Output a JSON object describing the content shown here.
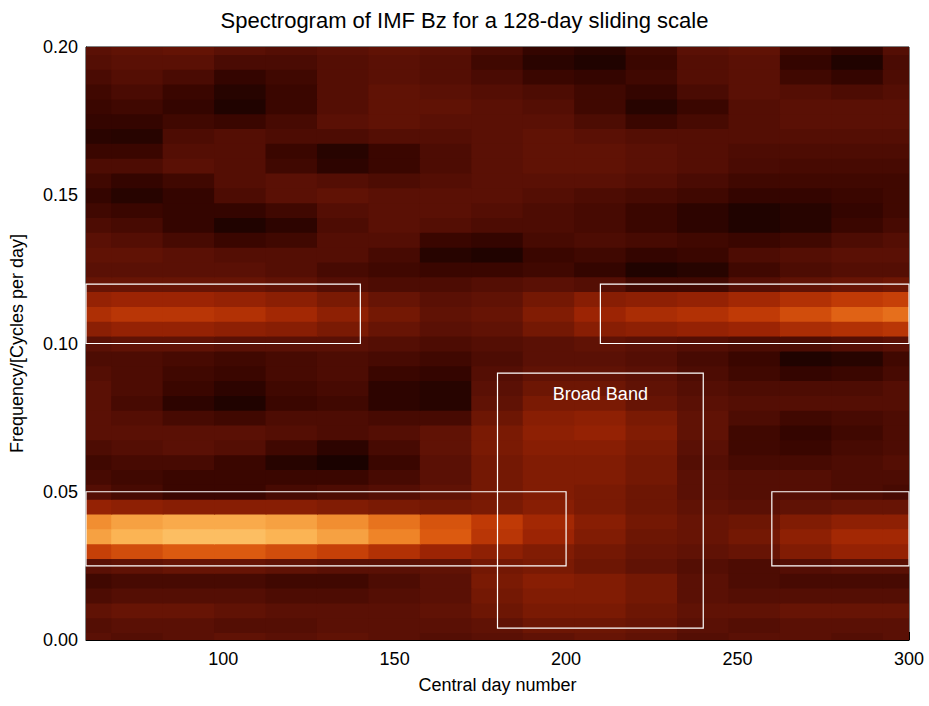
{
  "chart_data": {
    "type": "heatmap",
    "title": "Spectrogram of IMF Bz for a 128-day sliding scale",
    "x_label": "Central day number",
    "y_label": "Frequency/[Cycles per day]",
    "xlim": [
      60,
      300
    ],
    "ylim": [
      0,
      0.2
    ],
    "xticks": [
      100,
      150,
      200,
      250,
      300
    ],
    "yticks": [
      {
        "value": 0,
        "label": "0.00"
      },
      {
        "value": 0.05,
        "label": "0.05"
      },
      {
        "value": 0.1,
        "label": "0.10"
      },
      {
        "value": 0.15,
        "label": "0.15"
      },
      {
        "value": 0.2,
        "label": "0.20"
      }
    ],
    "grid": false,
    "zlim": [
      0,
      1
    ],
    "cells": {
      "x": [
        60,
        75,
        90,
        105,
        120,
        135,
        150,
        165,
        180,
        195,
        210,
        225,
        240,
        255,
        270,
        285,
        300
      ],
      "y": [
        0,
        0.005,
        0.01,
        0.015,
        0.02,
        0.025,
        0.03,
        0.035,
        0.04,
        0.045,
        0.05,
        0.055,
        0.06,
        0.065,
        0.07,
        0.075,
        0.08,
        0.085,
        0.09,
        0.095,
        0.1,
        0.105,
        0.11,
        0.115,
        0.12,
        0.125,
        0.13,
        0.135,
        0.14,
        0.145,
        0.15,
        0.155,
        0.16,
        0.165,
        0.17,
        0.175,
        0.18,
        0.185,
        0.19,
        0.195,
        0.2
      ],
      "z": [
        [
          0.3,
          0.28,
          0.3,
          0.32,
          0.3,
          0.32,
          0.3,
          0.28,
          0.3,
          0.32,
          0.34,
          0.32,
          0.28,
          0.3,
          0.3,
          0.28,
          0.3
        ],
        [
          0.28,
          0.3,
          0.3,
          0.28,
          0.28,
          0.3,
          0.3,
          0.3,
          0.32,
          0.36,
          0.36,
          0.34,
          0.3,
          0.28,
          0.3,
          0.3,
          0.3
        ],
        [
          0.32,
          0.34,
          0.34,
          0.32,
          0.3,
          0.3,
          0.3,
          0.32,
          0.36,
          0.4,
          0.4,
          0.36,
          0.32,
          0.32,
          0.34,
          0.34,
          0.34
        ],
        [
          0.26,
          0.28,
          0.28,
          0.28,
          0.26,
          0.26,
          0.28,
          0.3,
          0.38,
          0.42,
          0.42,
          0.38,
          0.3,
          0.28,
          0.28,
          0.28,
          0.28
        ],
        [
          0.22,
          0.24,
          0.24,
          0.24,
          0.22,
          0.22,
          0.26,
          0.3,
          0.4,
          0.44,
          0.42,
          0.38,
          0.3,
          0.26,
          0.24,
          0.24,
          0.24
        ],
        [
          0.3,
          0.32,
          0.34,
          0.34,
          0.32,
          0.3,
          0.3,
          0.32,
          0.38,
          0.4,
          0.36,
          0.32,
          0.28,
          0.26,
          0.28,
          0.3,
          0.3
        ],
        [
          0.62,
          0.66,
          0.7,
          0.7,
          0.66,
          0.62,
          0.56,
          0.5,
          0.46,
          0.42,
          0.38,
          0.34,
          0.32,
          0.34,
          0.42,
          0.48,
          0.48
        ],
        [
          0.86,
          0.9,
          0.92,
          0.92,
          0.9,
          0.86,
          0.8,
          0.7,
          0.58,
          0.5,
          0.42,
          0.36,
          0.34,
          0.38,
          0.46,
          0.52,
          0.52
        ],
        [
          0.82,
          0.86,
          0.88,
          0.88,
          0.86,
          0.82,
          0.76,
          0.68,
          0.6,
          0.52,
          0.44,
          0.38,
          0.34,
          0.36,
          0.42,
          0.46,
          0.46
        ],
        [
          0.48,
          0.46,
          0.44,
          0.44,
          0.44,
          0.42,
          0.4,
          0.38,
          0.4,
          0.44,
          0.4,
          0.36,
          0.32,
          0.3,
          0.32,
          0.34,
          0.34
        ],
        [
          0.28,
          0.24,
          0.2,
          0.2,
          0.24,
          0.26,
          0.28,
          0.32,
          0.38,
          0.42,
          0.4,
          0.36,
          0.3,
          0.28,
          0.28,
          0.26,
          0.24
        ],
        [
          0.24,
          0.22,
          0.2,
          0.2,
          0.2,
          0.2,
          0.24,
          0.3,
          0.38,
          0.42,
          0.42,
          0.38,
          0.3,
          0.28,
          0.28,
          0.26,
          0.26
        ],
        [
          0.22,
          0.24,
          0.24,
          0.2,
          0.14,
          0.1,
          0.2,
          0.3,
          0.38,
          0.42,
          0.42,
          0.38,
          0.28,
          0.24,
          0.24,
          0.26,
          0.28
        ],
        [
          0.26,
          0.28,
          0.3,
          0.28,
          0.22,
          0.16,
          0.24,
          0.32,
          0.4,
          0.44,
          0.44,
          0.4,
          0.3,
          0.22,
          0.2,
          0.24,
          0.26
        ],
        [
          0.3,
          0.3,
          0.3,
          0.3,
          0.28,
          0.26,
          0.28,
          0.32,
          0.4,
          0.46,
          0.48,
          0.42,
          0.32,
          0.22,
          0.18,
          0.22,
          0.26
        ],
        [
          0.3,
          0.28,
          0.24,
          0.22,
          0.26,
          0.26,
          0.24,
          0.24,
          0.36,
          0.44,
          0.46,
          0.4,
          0.32,
          0.26,
          0.22,
          0.24,
          0.26
        ],
        [
          0.3,
          0.24,
          0.16,
          0.12,
          0.2,
          0.22,
          0.16,
          0.14,
          0.32,
          0.4,
          0.4,
          0.34,
          0.3,
          0.28,
          0.28,
          0.28,
          0.28
        ],
        [
          0.3,
          0.26,
          0.2,
          0.16,
          0.22,
          0.24,
          0.16,
          0.14,
          0.3,
          0.36,
          0.36,
          0.32,
          0.28,
          0.26,
          0.26,
          0.26,
          0.28
        ],
        [
          0.28,
          0.26,
          0.22,
          0.2,
          0.24,
          0.26,
          0.2,
          0.18,
          0.28,
          0.32,
          0.32,
          0.3,
          0.26,
          0.22,
          0.18,
          0.2,
          0.24
        ],
        [
          0.26,
          0.26,
          0.24,
          0.22,
          0.24,
          0.26,
          0.24,
          0.22,
          0.26,
          0.3,
          0.3,
          0.28,
          0.24,
          0.2,
          0.12,
          0.14,
          0.22
        ],
        [
          0.3,
          0.32,
          0.32,
          0.3,
          0.3,
          0.3,
          0.28,
          0.26,
          0.28,
          0.3,
          0.32,
          0.3,
          0.28,
          0.26,
          0.26,
          0.28,
          0.3
        ],
        [
          0.45,
          0.48,
          0.48,
          0.46,
          0.44,
          0.4,
          0.34,
          0.3,
          0.32,
          0.38,
          0.44,
          0.46,
          0.48,
          0.5,
          0.54,
          0.56,
          0.58
        ],
        [
          0.55,
          0.58,
          0.58,
          0.56,
          0.52,
          0.46,
          0.38,
          0.32,
          0.34,
          0.42,
          0.5,
          0.54,
          0.56,
          0.6,
          0.66,
          0.72,
          0.75
        ],
        [
          0.48,
          0.5,
          0.5,
          0.48,
          0.45,
          0.4,
          0.34,
          0.3,
          0.32,
          0.38,
          0.44,
          0.46,
          0.48,
          0.52,
          0.56,
          0.6,
          0.62
        ],
        [
          0.34,
          0.34,
          0.34,
          0.34,
          0.32,
          0.28,
          0.26,
          0.26,
          0.28,
          0.3,
          0.28,
          0.22,
          0.22,
          0.28,
          0.32,
          0.34,
          0.36
        ],
        [
          0.3,
          0.3,
          0.3,
          0.3,
          0.28,
          0.24,
          0.22,
          0.2,
          0.2,
          0.22,
          0.18,
          0.12,
          0.14,
          0.22,
          0.26,
          0.28,
          0.28
        ],
        [
          0.32,
          0.32,
          0.3,
          0.28,
          0.28,
          0.28,
          0.24,
          0.14,
          0.12,
          0.2,
          0.22,
          0.18,
          0.2,
          0.26,
          0.28,
          0.3,
          0.3
        ],
        [
          0.3,
          0.28,
          0.24,
          0.2,
          0.22,
          0.28,
          0.28,
          0.2,
          0.18,
          0.24,
          0.26,
          0.24,
          0.22,
          0.2,
          0.22,
          0.26,
          0.28
        ],
        [
          0.26,
          0.24,
          0.18,
          0.12,
          0.16,
          0.26,
          0.3,
          0.28,
          0.26,
          0.26,
          0.24,
          0.2,
          0.16,
          0.12,
          0.14,
          0.2,
          0.24
        ],
        [
          0.22,
          0.2,
          0.18,
          0.18,
          0.22,
          0.28,
          0.3,
          0.3,
          0.28,
          0.26,
          0.24,
          0.2,
          0.16,
          0.12,
          0.14,
          0.18,
          0.22
        ],
        [
          0.18,
          0.14,
          0.18,
          0.26,
          0.3,
          0.32,
          0.3,
          0.3,
          0.3,
          0.28,
          0.26,
          0.24,
          0.22,
          0.18,
          0.18,
          0.2,
          0.22
        ],
        [
          0.22,
          0.18,
          0.22,
          0.28,
          0.3,
          0.28,
          0.26,
          0.28,
          0.3,
          0.3,
          0.3,
          0.28,
          0.25,
          0.22,
          0.22,
          0.22,
          0.22
        ],
        [
          0.26,
          0.26,
          0.3,
          0.28,
          0.22,
          0.16,
          0.2,
          0.26,
          0.3,
          0.32,
          0.32,
          0.3,
          0.28,
          0.25,
          0.24,
          0.24,
          0.24
        ],
        [
          0.2,
          0.2,
          0.28,
          0.28,
          0.2,
          0.14,
          0.2,
          0.26,
          0.3,
          0.32,
          0.32,
          0.3,
          0.28,
          0.26,
          0.26,
          0.26,
          0.26
        ],
        [
          0.15,
          0.14,
          0.26,
          0.28,
          0.26,
          0.26,
          0.28,
          0.28,
          0.3,
          0.32,
          0.3,
          0.28,
          0.28,
          0.28,
          0.28,
          0.28,
          0.28
        ],
        [
          0.18,
          0.18,
          0.22,
          0.2,
          0.24,
          0.3,
          0.32,
          0.3,
          0.3,
          0.3,
          0.26,
          0.2,
          0.24,
          0.28,
          0.3,
          0.3,
          0.3
        ],
        [
          0.2,
          0.22,
          0.18,
          0.12,
          0.2,
          0.28,
          0.32,
          0.32,
          0.3,
          0.28,
          0.22,
          0.14,
          0.2,
          0.28,
          0.3,
          0.3,
          0.3
        ],
        [
          0.22,
          0.25,
          0.2,
          0.14,
          0.2,
          0.28,
          0.32,
          0.3,
          0.28,
          0.26,
          0.22,
          0.18,
          0.25,
          0.3,
          0.28,
          0.26,
          0.28
        ],
        [
          0.25,
          0.28,
          0.25,
          0.18,
          0.22,
          0.28,
          0.3,
          0.28,
          0.25,
          0.2,
          0.18,
          0.22,
          0.28,
          0.3,
          0.22,
          0.18,
          0.26
        ],
        [
          0.28,
          0.3,
          0.3,
          0.25,
          0.25,
          0.28,
          0.3,
          0.28,
          0.22,
          0.15,
          0.12,
          0.2,
          0.28,
          0.3,
          0.18,
          0.12,
          0.25
        ],
        [
          0.3,
          0.32,
          0.33,
          0.3,
          0.28,
          0.3,
          0.32,
          0.3,
          0.25,
          0.18,
          0.15,
          0.22,
          0.3,
          0.32,
          0.22,
          0.18,
          0.28
        ]
      ]
    },
    "annotations": [
      {
        "x": [
          60,
          140
        ],
        "y": [
          0.1,
          0.12
        ]
      },
      {
        "x": [
          210,
          300
        ],
        "y": [
          0.1,
          0.12
        ]
      },
      {
        "x": [
          60,
          200
        ],
        "y": [
          0.025,
          0.05
        ]
      },
      {
        "x": [
          260,
          300
        ],
        "y": [
          0.025,
          0.05
        ]
      },
      {
        "x": [
          180,
          240
        ],
        "y": [
          0.004,
          0.09
        ],
        "label": "Broad Band"
      }
    ]
  }
}
